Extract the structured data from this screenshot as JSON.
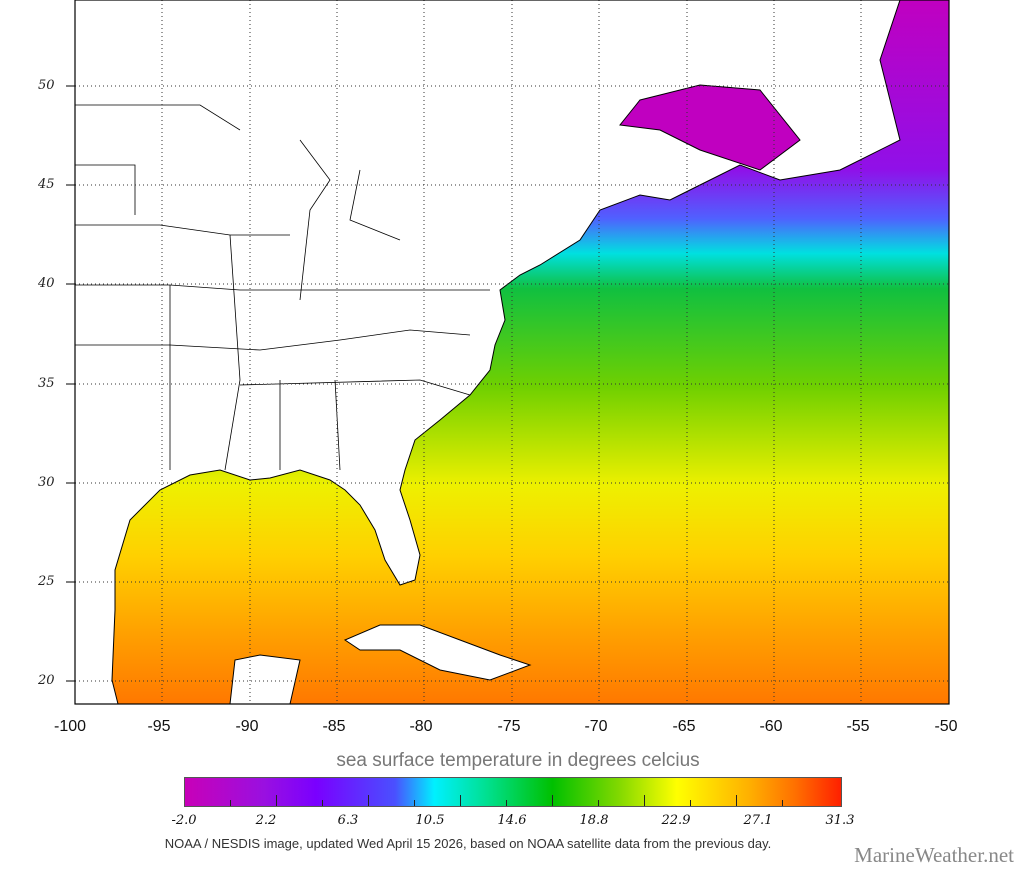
{
  "map": {
    "latitude_labels": [
      "50",
      "45",
      "40",
      "35",
      "30",
      "25",
      "20"
    ],
    "longitude_labels": [
      "-100",
      "-95",
      "-90",
      "-85",
      "-80",
      "-75",
      "-70",
      "-65",
      "-60",
      "-55",
      "-50"
    ]
  },
  "legend": {
    "title": "sea surface temperature in degrees celcius",
    "ticks": [
      "-2.0",
      "2.2",
      "6.3",
      "10.5",
      "14.6",
      "18.8",
      "22.9",
      "27.1",
      "31.3"
    ],
    "range_celsius": [
      -2.0,
      31.3
    ]
  },
  "footer": {
    "credit": "NOAA / NESDIS image, updated Wed April 15 2026, based on NOAA satellite data from the previous day.",
    "brand": "MarineWeather.net"
  }
}
